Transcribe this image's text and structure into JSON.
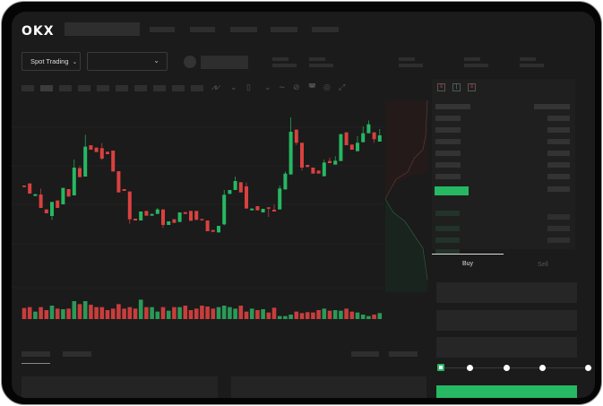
{
  "header": {
    "logo": "OKX"
  },
  "selectors": {
    "market_type": "Spot Trading",
    "pair": ""
  },
  "order_form": {
    "tabs": [
      "Buy",
      "Sell"
    ],
    "active_tab": "Buy",
    "slider_percent": 0,
    "slider_stops": 5
  },
  "colors": {
    "up": "#26b862",
    "down": "#d9413f",
    "background": "#1b1b1b",
    "accent": "#26b862"
  },
  "icons": [
    "chevron-down-icon",
    "indicator-icon",
    "line-tool-icon",
    "ruler-icon",
    "camera-icon",
    "settings-icon",
    "fullscreen-icon",
    "orderbook-both-icon",
    "orderbook-bids-icon",
    "orderbook-asks-icon"
  ],
  "candles": [
    [
      245,
      240,
      245,
      240
    ],
    [
      252,
      218,
      252,
      218
    ],
    [
      210,
      216,
      216,
      210
    ],
    [
      215,
      170,
      235,
      170
    ],
    [
      165,
      152,
      165,
      152
    ],
    [
      143,
      190,
      190,
      130
    ],
    [
      195,
      170,
      195,
      170
    ],
    [
      182,
      237,
      237,
      182
    ],
    [
      233,
      208,
      233,
      208
    ],
    [
      212,
      305,
      332,
      212
    ],
    [
      303,
      273,
      310,
      273
    ],
    [
      275,
      375,
      415,
      275
    ],
    [
      380,
      365,
      380,
      365
    ],
    [
      372,
      357,
      372,
      357
    ],
    [
      370,
      335,
      387,
      330
    ],
    [
      358,
      350,
      358,
      350
    ],
    [
      362,
      292,
      362,
      292
    ],
    [
      293,
      222,
      293,
      222
    ],
    [
      233,
      227,
      233,
      227
    ],
    [
      225,
      132,
      225,
      117
    ],
    [
      134,
      128,
      134,
      128
    ],
    [
      128,
      158,
      158,
      128
    ],
    [
      160,
      144,
      160,
      144
    ],
    [
      144,
      150,
      150,
      144
    ],
    [
      150,
      165,
      170,
      150
    ],
    [
      165,
      113,
      165,
      103
    ],
    [
      113,
      125,
      125,
      113
    ],
    [
      132,
      120,
      132,
      120
    ],
    [
      123,
      155,
      155,
      123
    ],
    [
      156,
      150,
      156,
      150
    ],
    [
      160,
      127,
      160,
      127
    ],
    [
      160,
      130,
      160,
      130
    ],
    [
      133,
      130,
      133,
      130
    ],
    [
      128,
      92,
      128,
      92
    ],
    [
      96,
      90,
      96,
      90
    ],
    [
      88,
      110,
      110,
      88
    ],
    [
      115,
      214,
      230,
      112
    ],
    [
      217,
      230,
      230,
      217
    ],
    [
      230,
      260,
      275,
      230
    ],
    [
      256,
      222,
      256,
      222
    ],
    [
      242,
      168,
      255,
      168
    ],
    [
      162,
      168,
      168,
      162
    ],
    [
      176,
      162,
      176,
      162
    ],
    [
      155,
      167,
      167,
      155
    ],
    [
      172,
      170,
      172,
      140
    ],
    [
      164,
      158,
      182,
      158
    ],
    [
      165,
      235,
      245,
      165
    ],
    [
      232,
      285,
      292,
      232
    ],
    [
      282,
      425,
      473,
      282
    ],
    [
      432,
      388,
      432,
      380
    ],
    [
      388,
      305,
      388,
      295
    ],
    [
      314,
      307,
      314,
      307
    ],
    [
      305,
      285,
      305,
      285
    ],
    [
      295,
      285,
      295,
      285
    ],
    [
      276,
      322,
      332,
      276
    ],
    [
      327,
      320,
      338,
      320
    ],
    [
      315,
      328,
      343,
      315
    ],
    [
      327,
      417,
      417,
      327
    ],
    [
      423,
      380,
      423,
      380
    ],
    [
      382,
      365,
      382,
      365
    ],
    [
      360,
      388,
      410,
      360
    ],
    [
      390,
      420,
      443,
      390
    ],
    [
      420,
      450,
      463,
      420
    ],
    [
      423,
      400,
      423,
      388
    ],
    [
      392,
      413,
      434,
      392
    ]
  ],
  "volumes": [
    37,
    40,
    25,
    40,
    30,
    45,
    35,
    33,
    35,
    60,
    50,
    60,
    48,
    40,
    40,
    30,
    35,
    50,
    35,
    40,
    35,
    65,
    40,
    40,
    25,
    40,
    28,
    40,
    40,
    45,
    30,
    35,
    45,
    42,
    35,
    40,
    45,
    40,
    35,
    45,
    25,
    35,
    30,
    33,
    22,
    38,
    10,
    10,
    15,
    25,
    20,
    23,
    22,
    30,
    35,
    28,
    30,
    28,
    35,
    25,
    22,
    15,
    10,
    15,
    20
  ]
}
